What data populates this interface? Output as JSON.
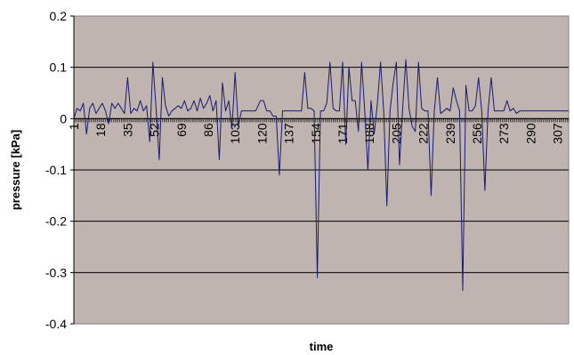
{
  "chart_data": {
    "type": "line",
    "xlabel": "time",
    "ylabel": "pressure [kPa]",
    "ylim": [
      -0.4,
      0.2
    ],
    "xlim": [
      1,
      314
    ],
    "yticks": [
      "0.2",
      "0.1",
      "0",
      "-0.1",
      "-0.2",
      "-0.3",
      "-0.4"
    ],
    "xticks": [
      "1",
      "18",
      "35",
      "52",
      "69",
      "86",
      "103",
      "120",
      "137",
      "154",
      "171",
      "188",
      "205",
      "222",
      "239",
      "256",
      "273",
      "290",
      "307"
    ],
    "grid": "horizontal",
    "colors": {
      "plot_background": "#c0b4b0",
      "series": "#1a1a6e",
      "grid": "#000000"
    },
    "series": [
      {
        "points": [
          [
            1,
            0
          ],
          [
            3,
            0.02
          ],
          [
            5,
            0.015
          ],
          [
            7,
            0.03
          ],
          [
            9,
            -0.03
          ],
          [
            11,
            0.02
          ],
          [
            13,
            0.03
          ],
          [
            15,
            0.01
          ],
          [
            17,
            0.02
          ],
          [
            19,
            0.03
          ],
          [
            21,
            0.015
          ],
          [
            23,
            -0.01
          ],
          [
            25,
            0.03
          ],
          [
            27,
            0.02
          ],
          [
            29,
            0.03
          ],
          [
            31,
            0.02
          ],
          [
            33,
            0.01
          ],
          [
            35,
            0.08
          ],
          [
            37,
            0.01
          ],
          [
            39,
            0.02
          ],
          [
            41,
            0.015
          ],
          [
            43,
            0.035
          ],
          [
            45,
            0.015
          ],
          [
            47,
            0.025
          ],
          [
            49,
            -0.045
          ],
          [
            51,
            0.11
          ],
          [
            53,
            0.02
          ],
          [
            55,
            -0.08
          ],
          [
            57,
            0.08
          ],
          [
            59,
            0.025
          ],
          [
            61,
            0.005
          ],
          [
            63,
            0.015
          ],
          [
            65,
            0.02
          ],
          [
            67,
            0.025
          ],
          [
            69,
            0.02
          ],
          [
            71,
            0.035
          ],
          [
            73,
            0.015
          ],
          [
            75,
            0.02
          ],
          [
            77,
            0.035
          ],
          [
            79,
            0.015
          ],
          [
            81,
            0.04
          ],
          [
            83,
            0.02
          ],
          [
            85,
            0.03
          ],
          [
            87,
            0.045
          ],
          [
            89,
            0.015
          ],
          [
            91,
            0.035
          ],
          [
            93,
            -0.08
          ],
          [
            95,
            0.07
          ],
          [
            97,
            0.015
          ],
          [
            99,
            0.035
          ],
          [
            101,
            -0.02
          ],
          [
            103,
            0.09
          ],
          [
            105,
            -0.015
          ],
          [
            107,
            0.015
          ],
          [
            109,
            0.015
          ],
          [
            112,
            0.015
          ],
          [
            116,
            0.015
          ],
          [
            119,
            0.035
          ],
          [
            121,
            0.035
          ],
          [
            123,
            0.015
          ],
          [
            125,
            0.015
          ],
          [
            127,
            0.005
          ],
          [
            129,
            0.005
          ],
          [
            131,
            -0.11
          ],
          [
            133,
            0.015
          ],
          [
            135,
            0.015
          ],
          [
            140,
            0.015
          ],
          [
            145,
            0.015
          ],
          [
            147,
            0.09
          ],
          [
            149,
            0.02
          ],
          [
            151,
            0.02
          ],
          [
            153,
            0.015
          ],
          [
            155,
            -0.31
          ],
          [
            157,
            0.015
          ],
          [
            159,
            0.015
          ],
          [
            161,
            0.03
          ],
          [
            163,
            0.11
          ],
          [
            165,
            0.02
          ],
          [
            167,
            0.015
          ],
          [
            169,
            0.015
          ],
          [
            171,
            0.11
          ],
          [
            173,
            -0.05
          ],
          [
            175,
            0.1
          ],
          [
            177,
            0.035
          ],
          [
            179,
            0.035
          ],
          [
            181,
            -0.025
          ],
          [
            183,
            0.11
          ],
          [
            185,
            0.015
          ],
          [
            187,
            -0.1
          ],
          [
            189,
            0.035
          ],
          [
            191,
            -0.03
          ],
          [
            193,
            0.03
          ],
          [
            195,
            0.11
          ],
          [
            197,
            0.015
          ],
          [
            199,
            -0.17
          ],
          [
            201,
            0.015
          ],
          [
            203,
            0.07
          ],
          [
            205,
            0.11
          ],
          [
            207,
            -0.09
          ],
          [
            209,
            0.02
          ],
          [
            211,
            0.115
          ],
          [
            213,
            0.02
          ],
          [
            215,
            -0.015
          ],
          [
            217,
            -0.025
          ],
          [
            219,
            0.11
          ],
          [
            221,
            0.02
          ],
          [
            223,
            0.015
          ],
          [
            225,
            0.015
          ],
          [
            227,
            -0.15
          ],
          [
            229,
            0.015
          ],
          [
            231,
            0.08
          ],
          [
            233,
            0.01
          ],
          [
            235,
            0.015
          ],
          [
            237,
            0.02
          ],
          [
            239,
            0.015
          ],
          [
            241,
            0.06
          ],
          [
            243,
            0.035
          ],
          [
            245,
            0.015
          ],
          [
            247,
            -0.335
          ],
          [
            249,
            0.065
          ],
          [
            251,
            0.015
          ],
          [
            253,
            0.015
          ],
          [
            255,
            0.025
          ],
          [
            257,
            0.08
          ],
          [
            259,
            0.015
          ],
          [
            261,
            -0.14
          ],
          [
            263,
            0.015
          ],
          [
            265,
            0.08
          ],
          [
            267,
            0.015
          ],
          [
            269,
            0.015
          ],
          [
            271,
            0.015
          ],
          [
            273,
            0.015
          ],
          [
            275,
            0.035
          ],
          [
            277,
            0.015
          ],
          [
            279,
            0.02
          ],
          [
            281,
            0.01
          ],
          [
            283,
            0.015
          ],
          [
            290,
            0.015
          ],
          [
            300,
            0.015
          ],
          [
            314,
            0.015
          ]
        ]
      }
    ]
  }
}
